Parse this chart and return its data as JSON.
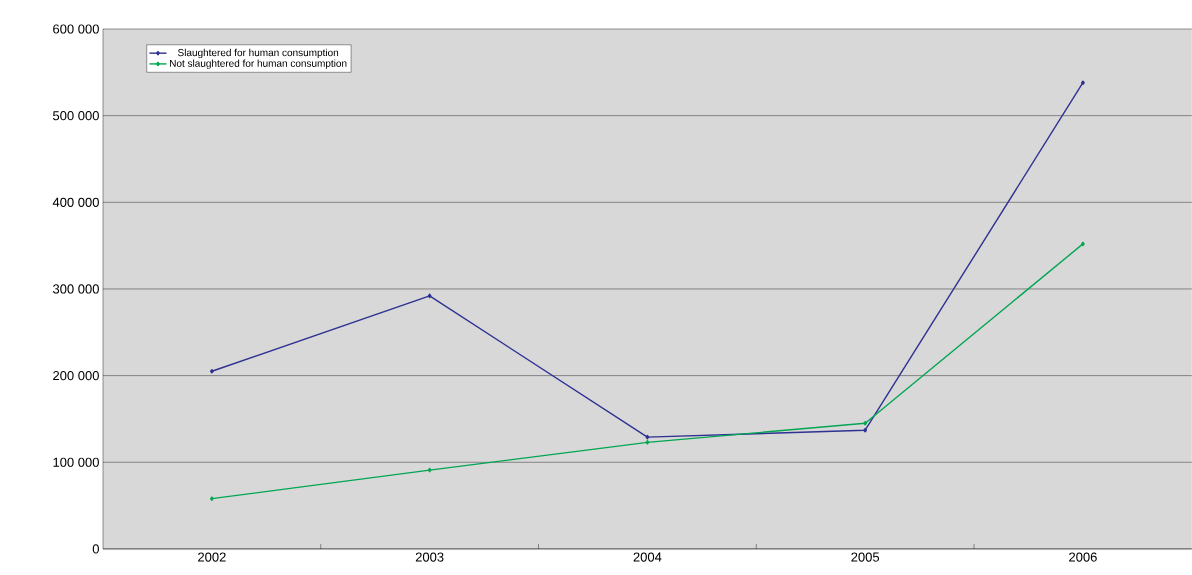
{
  "chart_data": {
    "type": "line",
    "categories": [
      "2002",
      "2003",
      "2004",
      "2005",
      "2006"
    ],
    "series": [
      {
        "name": "Slaughtered for human consumption",
        "color": "#2e3192",
        "values": [
          205000,
          292000,
          129000,
          137000,
          538000
        ]
      },
      {
        "name": "Not slaughtered for human consumption",
        "color": "#00a651",
        "values": [
          58000,
          91000,
          123000,
          145000,
          352000
        ]
      }
    ],
    "ylim": [
      0,
      600000
    ],
    "yticks": [
      {
        "value": 0,
        "label": "0"
      },
      {
        "value": 100000,
        "label": "100 000"
      },
      {
        "value": 200000,
        "label": "200 000"
      },
      {
        "value": 300000,
        "label": "300 000"
      },
      {
        "value": 400000,
        "label": "400 000"
      },
      {
        "value": 500000,
        "label": "500 000"
      },
      {
        "value": 600000,
        "label": "600 000"
      }
    ],
    "grid": "y",
    "legend": "top left",
    "marker": "diamond",
    "line_style": "solid"
  }
}
